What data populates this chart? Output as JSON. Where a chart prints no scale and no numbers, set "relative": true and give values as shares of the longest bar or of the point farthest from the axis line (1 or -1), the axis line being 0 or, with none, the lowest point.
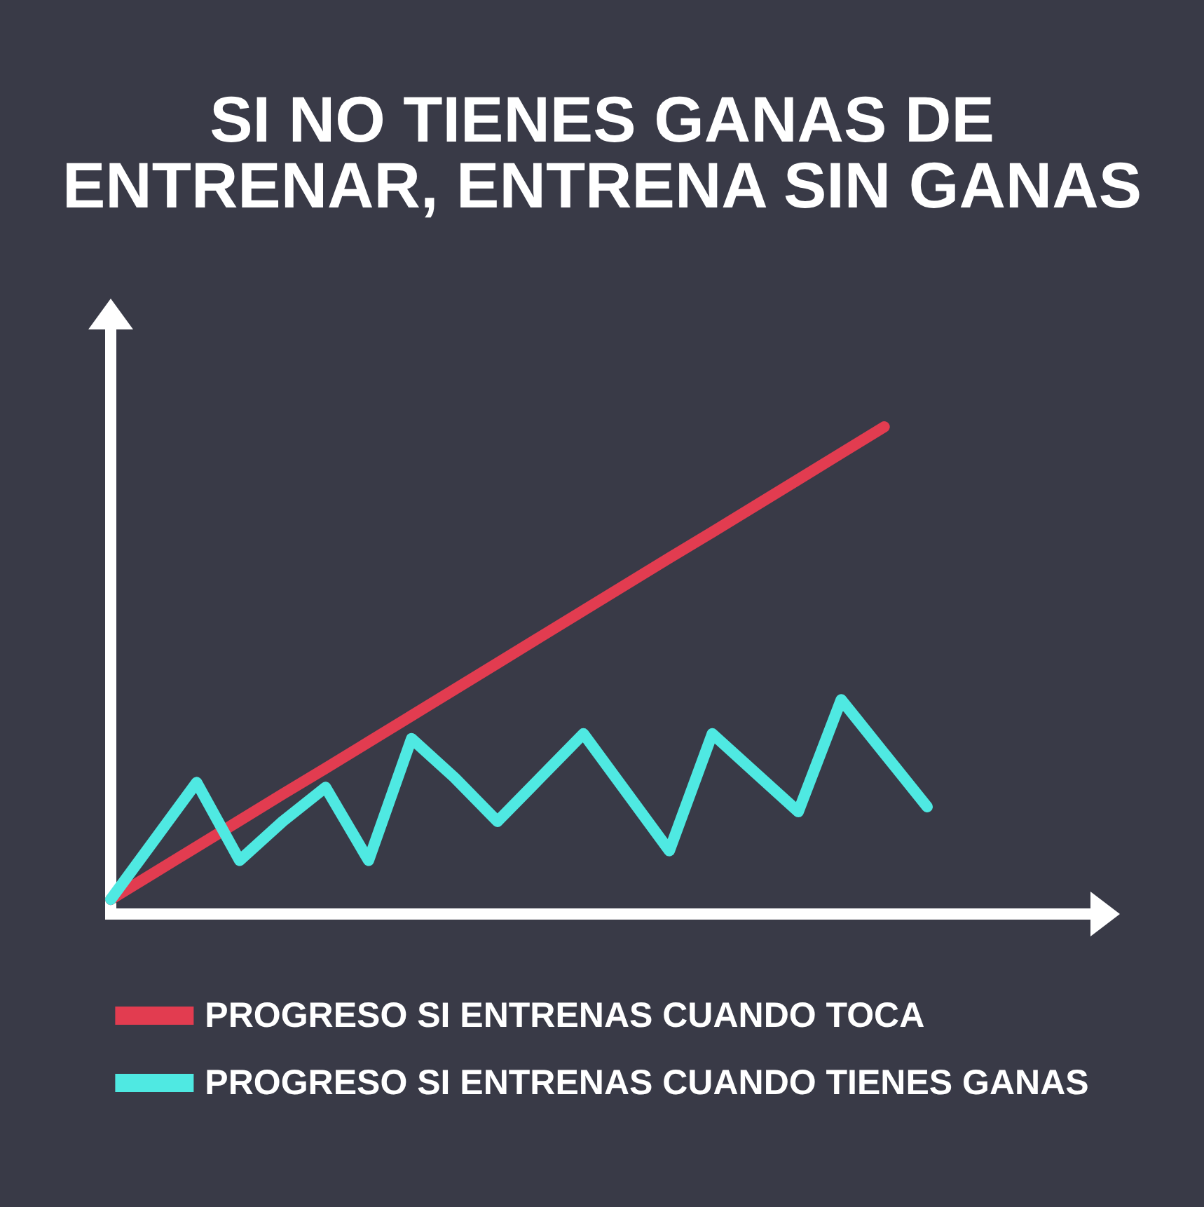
{
  "chart_data": {
    "type": "line",
    "title": "SI NO TIENES GANAS DE ENTRENAR, ENTRENA SIN GANAS",
    "relative": true,
    "categories": [
      null,
      null,
      null,
      null,
      null,
      null,
      null,
      null,
      null,
      null,
      null,
      null,
      null,
      null,
      null,
      null,
      null,
      null,
      null,
      null
    ],
    "series": [
      {
        "name": "PROGRESO SI ENTRENAS CUANDO TOCA",
        "color": "#e23c50",
        "values": [
          0.03,
          0.084,
          0.138,
          0.192,
          0.246,
          0.299,
          0.353,
          0.407,
          0.461,
          0.515,
          0.569,
          0.623,
          0.677,
          0.731,
          0.784,
          0.838,
          0.892,
          0.946,
          1,
          null
        ]
      },
      {
        "name": "PROGRESO SI ENTRENAS CUANDO TIENES GANAS",
        "color": "#4fe9e2",
        "values": [
          0.03,
          0.15,
          0.27,
          0.11,
          0.19,
          0.26,
          0.11,
          0.36,
          0.28,
          0.19,
          0.28,
          0.37,
          0.25,
          0.13,
          0.37,
          0.29,
          0.21,
          0.44,
          0.33,
          0.22
        ]
      }
    ],
    "legend": "bottom",
    "marker": "none",
    "line_style": "solid"
  }
}
